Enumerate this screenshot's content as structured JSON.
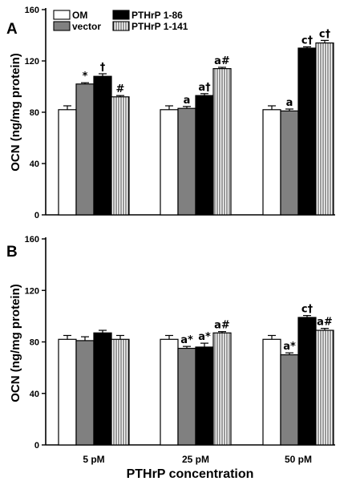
{
  "chart_data": [
    {
      "type": "bar",
      "panel_label": "A",
      "ylabel": "OCN (ng/mg protein)",
      "ylim": [
        0,
        160
      ],
      "yticks": [
        0,
        40,
        80,
        120,
        160
      ],
      "categories": [
        "5 pM",
        "25 pM",
        "50 pM"
      ],
      "legend": {
        "position": "top-left",
        "entries": [
          "OM",
          "vector",
          "PTHrP 1-86",
          "PTHrP 1-141"
        ]
      },
      "series": [
        {
          "name": "OM",
          "fill": "#ffffff",
          "values": [
            82,
            82,
            82
          ],
          "errors": [
            3,
            3,
            3
          ],
          "annotations": [
            "",
            "",
            ""
          ]
        },
        {
          "name": "vector",
          "fill": "#808080",
          "values": [
            102,
            83,
            81
          ],
          "errors": [
            1,
            1.5,
            1.5
          ],
          "annotations": [
            "*",
            "a",
            "a"
          ]
        },
        {
          "name": "PTHrP 1-86",
          "fill": "#000000",
          "values": [
            108,
            93,
            130
          ],
          "errors": [
            2,
            1.5,
            1
          ],
          "annotations": [
            "†",
            "a†",
            "c†"
          ]
        },
        {
          "name": "PTHrP 1-141",
          "fill": "hatch",
          "values": [
            92,
            114,
            134
          ],
          "errors": [
            1,
            1,
            2
          ],
          "annotations": [
            "#",
            "a#",
            "c†"
          ]
        }
      ]
    },
    {
      "type": "bar",
      "panel_label": "B",
      "ylabel": "OCN (ng/mg protein)",
      "xlabel": "PTHrP concentration",
      "ylim": [
        0,
        160
      ],
      "yticks": [
        0,
        40,
        80,
        120,
        160
      ],
      "categories": [
        "5 pM",
        "25 pM",
        "50 pM"
      ],
      "series": [
        {
          "name": "OM",
          "fill": "#ffffff",
          "values": [
            82,
            82,
            82
          ],
          "errors": [
            3,
            3,
            3
          ],
          "annotations": [
            "",
            "",
            ""
          ]
        },
        {
          "name": "vector",
          "fill": "#808080",
          "values": [
            81,
            75,
            70
          ],
          "errors": [
            3,
            1.5,
            1.5
          ],
          "annotations": [
            "",
            "a*",
            "a*"
          ]
        },
        {
          "name": "PTHrP 1-86",
          "fill": "#000000",
          "values": [
            87,
            76,
            99
          ],
          "errors": [
            2,
            3,
            1.5
          ],
          "annotations": [
            "",
            "a*",
            "c†"
          ]
        },
        {
          "name": "PTHrP 1-141",
          "fill": "hatch",
          "values": [
            82,
            87,
            89
          ],
          "errors": [
            3,
            1,
            1.5
          ],
          "annotations": [
            "",
            "a#",
            "a#"
          ]
        }
      ]
    }
  ]
}
